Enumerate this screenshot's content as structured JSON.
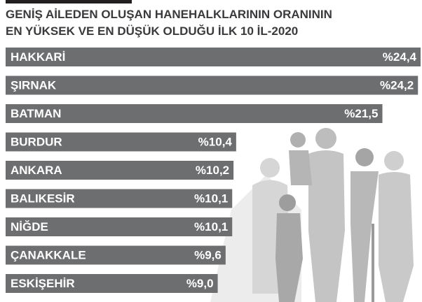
{
  "chart_data": {
    "type": "bar",
    "orientation": "horizontal",
    "title": [
      "GENİŞ AİLEDEN OLUŞAN HANEHALKLARININ ORANININ",
      "EN YÜKSEK VE EN DÜŞÜK OLDUĞU İLK 10 İL-2020"
    ],
    "categories": [
      "HAKKARİ",
      "ŞIRNAK",
      "BATMAN",
      "BURDUR",
      "ANKARA",
      "BALIKESİR",
      "NİĞDE",
      "ÇANAKKALE",
      "ESKİŞEHİR"
    ],
    "values": [
      24.4,
      24.2,
      21.5,
      10.4,
      10.2,
      10.1,
      10.1,
      9.6,
      9.0
    ],
    "value_labels": [
      "%24,4",
      "%24,2",
      "%21,5",
      "%10,4",
      "%10,2",
      "%10,1",
      "%10,1",
      "%9,6",
      "%9,0"
    ],
    "color": "#6d6e70",
    "xlim": [
      -7.1,
      24.4
    ]
  }
}
